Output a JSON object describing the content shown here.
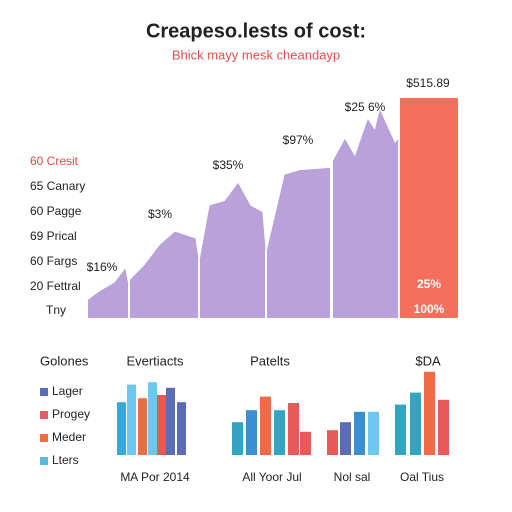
{
  "chart_data": [
    {
      "type": "area",
      "title": "Creapeso.lests of cost:",
      "subtitle": "Bhick mayy mesk cheandayp",
      "labels": [
        "60 Cresit",
        "65 Canary",
        "60 Pagge",
        "69 Prical",
        "60 Fargs",
        "20 Fettral",
        "Tny"
      ],
      "annotations": [
        "$16%",
        "$3%",
        "$35%",
        "$97%",
        "$25 6%",
        "$515.89",
        "25%",
        "100%"
      ],
      "x": [
        0,
        12,
        27,
        37,
        40,
        41,
        42,
        57,
        72,
        87,
        107,
        110,
        111,
        112,
        122,
        137,
        150,
        162,
        174,
        177,
        178,
        179,
        197,
        212,
        242,
        243,
        245,
        257,
        267,
        280,
        287,
        292,
        307,
        310
      ],
      "values": [
        8,
        12,
        16,
        22,
        15,
        null,
        17,
        24,
        33,
        39,
        36,
        27,
        null,
        26,
        51,
        53,
        61,
        51,
        48,
        31,
        null,
        30,
        65,
        67,
        68,
        null,
        71,
        81,
        73,
        90,
        85,
        94,
        79,
        81
      ],
      "color": "#b9a1da",
      "xlim": [
        0,
        370
      ],
      "ylim": [
        0,
        100
      ],
      "bar": {
        "x": [
          312,
          370
        ],
        "value": 100,
        "color": "#f4705d"
      }
    },
    {
      "type": "bar",
      "title": "Evertiacts",
      "xlabel": "MA Por 2014",
      "ylim": [
        0,
        110
      ],
      "values": [
        66,
        88,
        71,
        91,
        75,
        84,
        66
      ],
      "colors": [
        "#3ba6d8",
        "#6cc8ee",
        "#ef6a45",
        "#6cc8ee",
        "#e85a5a",
        "#5b6bb5",
        "#5b6bb5"
      ]
    },
    {
      "type": "bar",
      "title": "Patelts",
      "xlabel": "All Yoor Jul",
      "ylim": [
        0,
        110
      ],
      "values": [
        41,
        56,
        73,
        56,
        65,
        29
      ],
      "colors": [
        "#33a5c0",
        "#3b8fd0",
        "#ef6a45",
        "#33a5c0",
        "#e85a5a",
        "#e85a5a"
      ]
    },
    {
      "type": "bar",
      "title": "Nol sal",
      "ylim": [
        0,
        110
      ],
      "values": [
        31,
        41,
        54,
        54
      ],
      "colors": [
        "#e85a5a",
        "#5b6bb5",
        "#3b8fd0",
        "#6cc8ee"
      ]
    },
    {
      "type": "bar",
      "title": "$DA",
      "xlabel": "Oal Tius",
      "ylim": [
        0,
        110
      ],
      "values": [
        63,
        78,
        104,
        69
      ],
      "colors": [
        "#33a5c0",
        "#33a5c0",
        "#ef6a45",
        "#e85a5a"
      ]
    }
  ],
  "legend": {
    "title": "Golones",
    "items": [
      {
        "name": "Lager",
        "color": "#5b6bb5"
      },
      {
        "name": "Progey",
        "color": "#e0606a"
      },
      {
        "name": "Meder",
        "color": "#ef6a45"
      },
      {
        "name": "Lters",
        "color": "#5bb8d8"
      }
    ]
  }
}
